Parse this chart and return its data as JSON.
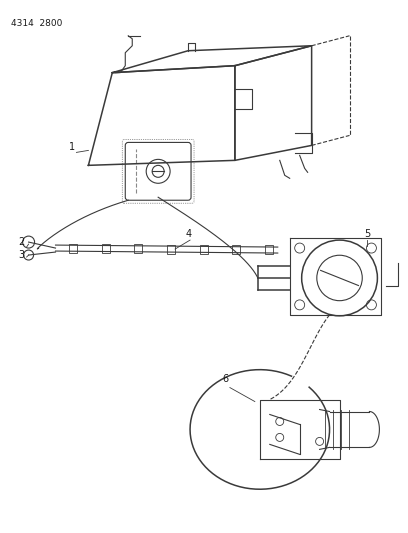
{
  "title": "4314  2800",
  "background_color": "#ffffff",
  "line_color": "#3a3a3a",
  "label_color": "#1a1a1a",
  "fig_w": 4.08,
  "fig_h": 5.33,
  "dpi": 100
}
